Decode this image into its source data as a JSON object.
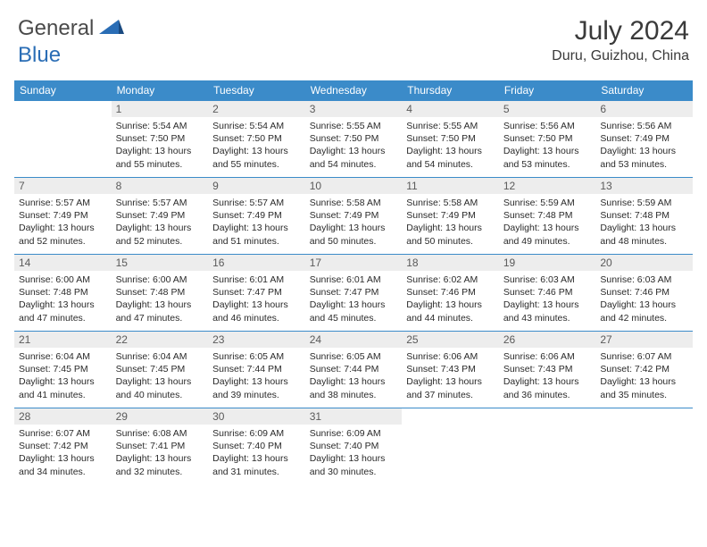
{
  "logo": {
    "text1": "General",
    "text2": "Blue"
  },
  "title": "July 2024",
  "location": "Duru, Guizhou, China",
  "colors": {
    "header_bg": "#3b8bc9",
    "header_text": "#ffffff",
    "daynum_bg": "#ededed",
    "daynum_text": "#5a5a5a",
    "border": "#3b8bc9",
    "body_text": "#2a2a2a",
    "logo_gray": "#4a4a4a",
    "logo_blue": "#2a6db5"
  },
  "day_headers": [
    "Sunday",
    "Monday",
    "Tuesday",
    "Wednesday",
    "Thursday",
    "Friday",
    "Saturday"
  ],
  "weeks": [
    [
      {
        "empty": true
      },
      {
        "num": "1",
        "sunrise": "5:54 AM",
        "sunset": "7:50 PM",
        "daylight": "13 hours and 55 minutes."
      },
      {
        "num": "2",
        "sunrise": "5:54 AM",
        "sunset": "7:50 PM",
        "daylight": "13 hours and 55 minutes."
      },
      {
        "num": "3",
        "sunrise": "5:55 AM",
        "sunset": "7:50 PM",
        "daylight": "13 hours and 54 minutes."
      },
      {
        "num": "4",
        "sunrise": "5:55 AM",
        "sunset": "7:50 PM",
        "daylight": "13 hours and 54 minutes."
      },
      {
        "num": "5",
        "sunrise": "5:56 AM",
        "sunset": "7:50 PM",
        "daylight": "13 hours and 53 minutes."
      },
      {
        "num": "6",
        "sunrise": "5:56 AM",
        "sunset": "7:49 PM",
        "daylight": "13 hours and 53 minutes."
      }
    ],
    [
      {
        "num": "7",
        "sunrise": "5:57 AM",
        "sunset": "7:49 PM",
        "daylight": "13 hours and 52 minutes."
      },
      {
        "num": "8",
        "sunrise": "5:57 AM",
        "sunset": "7:49 PM",
        "daylight": "13 hours and 52 minutes."
      },
      {
        "num": "9",
        "sunrise": "5:57 AM",
        "sunset": "7:49 PM",
        "daylight": "13 hours and 51 minutes."
      },
      {
        "num": "10",
        "sunrise": "5:58 AM",
        "sunset": "7:49 PM",
        "daylight": "13 hours and 50 minutes."
      },
      {
        "num": "11",
        "sunrise": "5:58 AM",
        "sunset": "7:49 PM",
        "daylight": "13 hours and 50 minutes."
      },
      {
        "num": "12",
        "sunrise": "5:59 AM",
        "sunset": "7:48 PM",
        "daylight": "13 hours and 49 minutes."
      },
      {
        "num": "13",
        "sunrise": "5:59 AM",
        "sunset": "7:48 PM",
        "daylight": "13 hours and 48 minutes."
      }
    ],
    [
      {
        "num": "14",
        "sunrise": "6:00 AM",
        "sunset": "7:48 PM",
        "daylight": "13 hours and 47 minutes."
      },
      {
        "num": "15",
        "sunrise": "6:00 AM",
        "sunset": "7:48 PM",
        "daylight": "13 hours and 47 minutes."
      },
      {
        "num": "16",
        "sunrise": "6:01 AM",
        "sunset": "7:47 PM",
        "daylight": "13 hours and 46 minutes."
      },
      {
        "num": "17",
        "sunrise": "6:01 AM",
        "sunset": "7:47 PM",
        "daylight": "13 hours and 45 minutes."
      },
      {
        "num": "18",
        "sunrise": "6:02 AM",
        "sunset": "7:46 PM",
        "daylight": "13 hours and 44 minutes."
      },
      {
        "num": "19",
        "sunrise": "6:03 AM",
        "sunset": "7:46 PM",
        "daylight": "13 hours and 43 minutes."
      },
      {
        "num": "20",
        "sunrise": "6:03 AM",
        "sunset": "7:46 PM",
        "daylight": "13 hours and 42 minutes."
      }
    ],
    [
      {
        "num": "21",
        "sunrise": "6:04 AM",
        "sunset": "7:45 PM",
        "daylight": "13 hours and 41 minutes."
      },
      {
        "num": "22",
        "sunrise": "6:04 AM",
        "sunset": "7:45 PM",
        "daylight": "13 hours and 40 minutes."
      },
      {
        "num": "23",
        "sunrise": "6:05 AM",
        "sunset": "7:44 PM",
        "daylight": "13 hours and 39 minutes."
      },
      {
        "num": "24",
        "sunrise": "6:05 AM",
        "sunset": "7:44 PM",
        "daylight": "13 hours and 38 minutes."
      },
      {
        "num": "25",
        "sunrise": "6:06 AM",
        "sunset": "7:43 PM",
        "daylight": "13 hours and 37 minutes."
      },
      {
        "num": "26",
        "sunrise": "6:06 AM",
        "sunset": "7:43 PM",
        "daylight": "13 hours and 36 minutes."
      },
      {
        "num": "27",
        "sunrise": "6:07 AM",
        "sunset": "7:42 PM",
        "daylight": "13 hours and 35 minutes."
      }
    ],
    [
      {
        "num": "28",
        "sunrise": "6:07 AM",
        "sunset": "7:42 PM",
        "daylight": "13 hours and 34 minutes."
      },
      {
        "num": "29",
        "sunrise": "6:08 AM",
        "sunset": "7:41 PM",
        "daylight": "13 hours and 32 minutes."
      },
      {
        "num": "30",
        "sunrise": "6:09 AM",
        "sunset": "7:40 PM",
        "daylight": "13 hours and 31 minutes."
      },
      {
        "num": "31",
        "sunrise": "6:09 AM",
        "sunset": "7:40 PM",
        "daylight": "13 hours and 30 minutes."
      },
      {
        "empty": true
      },
      {
        "empty": true
      },
      {
        "empty": true
      }
    ]
  ],
  "labels": {
    "sunrise": "Sunrise: ",
    "sunset": "Sunset: ",
    "daylight": "Daylight: "
  }
}
